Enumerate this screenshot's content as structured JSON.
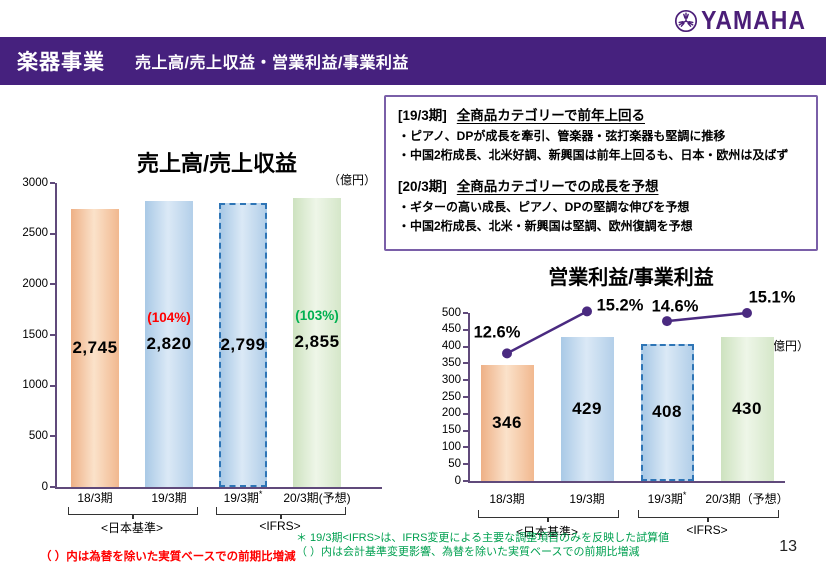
{
  "header": {
    "logo_text": "YAMAHA",
    "title": "楽器事業",
    "subtitle": "売上高/売上収益・営業利益/事業利益"
  },
  "info_box": {
    "sections": [
      {
        "tag": "[19/3期]",
        "headline": "全商品カテゴリーで前年上回る",
        "bullets": [
          "・ピアノ、DPが成長を牽引、管楽器・弦打楽器も堅調に推移",
          "・中国2桁成長、北米好調、新興国は前年上回るも、日本・欧州は及ばず"
        ]
      },
      {
        "tag": "[20/3期]",
        "headline": "全商品カテゴリーでの成長を予想",
        "bullets": [
          "・ギターの高い成長、ピアノ、DPの堅調な伸びを予想",
          "・中国2桁成長、北米・新興国は堅調、欧州復調を予想"
        ]
      }
    ]
  },
  "chart_data": [
    {
      "id": "sales",
      "type": "bar",
      "title": "売上高/売上収益",
      "unit_label": "（億円）",
      "categories": [
        "18/3期",
        "19/3期",
        "19/3期*",
        "20/3期(予想)"
      ],
      "values": [
        2745,
        2820,
        2799,
        2855
      ],
      "value_labels": [
        "2,745",
        "2,820",
        "2,799",
        "2,855"
      ],
      "annotations": [
        {
          "index": 1,
          "text": "(104%)",
          "color": "#ff0000"
        },
        {
          "index": 3,
          "text": "(103%)",
          "color": "#00b050"
        }
      ],
      "ylim": [
        0,
        3000
      ],
      "ytick_step": 500,
      "grid": false,
      "bar_styles": [
        "orange",
        "blue",
        "blue-dashed",
        "green"
      ],
      "group_brackets": [
        {
          "label": "<日本基準>",
          "from": 0,
          "to": 1
        },
        {
          "label": "<IFRS>",
          "from": 2,
          "to": 3
        }
      ]
    },
    {
      "id": "profit",
      "type": "bar+line",
      "title": "営業利益/事業利益",
      "unit_label": "（億円）",
      "categories": [
        "18/3期",
        "19/3期",
        "19/3期*",
        "20/3期（予想）"
      ],
      "values": [
        346,
        429,
        408,
        430
      ],
      "value_labels": [
        "346",
        "429",
        "408",
        "430"
      ],
      "annotations": [],
      "ylim": [
        0,
        500
      ],
      "ytick_step": 50,
      "grid": false,
      "bar_styles": [
        "orange",
        "blue",
        "blue-dashed",
        "green"
      ],
      "line": {
        "values": [
          12.6,
          15.2,
          14.6,
          15.1
        ],
        "labels": [
          "12.6%",
          "15.2%",
          "14.6%",
          "15.1%"
        ],
        "segments": [
          [
            0,
            1
          ],
          [
            2,
            3
          ]
        ],
        "axis_range": [
          4.7,
          15.1
        ],
        "color": "#4a2a80"
      },
      "group_brackets": [
        {
          "label": "<日本基準>",
          "from": 0,
          "to": 1
        },
        {
          "label": "<IFRS>",
          "from": 2,
          "to": 3
        }
      ]
    }
  ],
  "footnotes": {
    "left_red": "（ ）内は為替を除いた実質ベースでの前期比増減",
    "right_green_line1": "＊ 19/3期<IFRS>は、IFRS変更による主要な調整項目のみを反映した試算値",
    "right_green_line2": "（ ）内は会計基準変更影響、為替を除いた実質ベースでの前期比増減"
  },
  "page_number": "13",
  "colors": {
    "banner_purple": "#46217e",
    "logo_purple": "#4b1e78",
    "axis_purple": "#604a7b",
    "line_purple": "#4a2a80",
    "bar_orange": "#f5cba4",
    "bar_blue": "#bdd7ee",
    "bar_green": "#deebd5",
    "dashed_border_blue": "#2e75b6",
    "annotation_red": "#ff0000",
    "annotation_green": "#00b050",
    "footnote_green": "#00a050",
    "box_border_purple": "#7a5fa8"
  }
}
